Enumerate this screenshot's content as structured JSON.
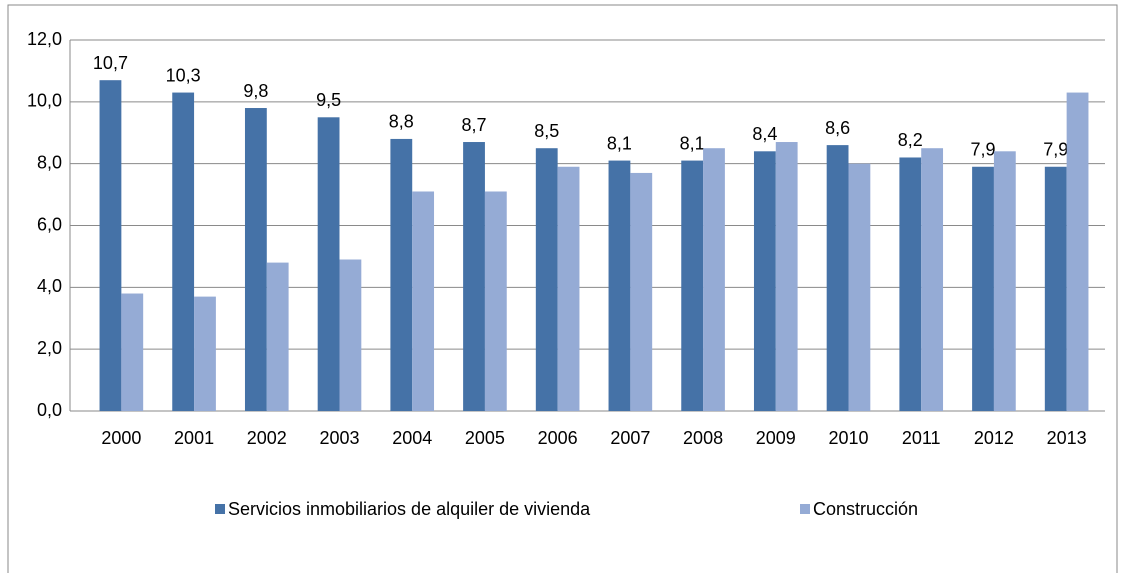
{
  "chart_data": {
    "type": "bar",
    "categories": [
      "2000",
      "2001",
      "2002",
      "2003",
      "2004",
      "2005",
      "2006",
      "2007",
      "2008",
      "2009",
      "2010",
      "2011",
      "2012",
      "2013"
    ],
    "series": [
      {
        "name": "Servicios inmobiliarios de alquiler de vivienda",
        "color": "#4572a7",
        "values": [
          10.7,
          10.3,
          9.8,
          9.5,
          8.8,
          8.7,
          8.5,
          8.1,
          8.1,
          8.4,
          8.6,
          8.2,
          7.9,
          7.9
        ],
        "value_labels": [
          "10,7",
          "10,3",
          "9,8",
          "9,5",
          "8,8",
          "8,7",
          "8,5",
          "8,1",
          "8,1",
          "8,4",
          "8,6",
          "8,2",
          "7,9",
          "7,9"
        ]
      },
      {
        "name": "Construcción",
        "color": "#95abd5",
        "values": [
          3.8,
          3.7,
          4.8,
          4.9,
          7.1,
          7.1,
          7.9,
          7.7,
          8.5,
          8.7,
          8.0,
          8.5,
          8.4,
          10.3
        ]
      }
    ],
    "ylim": [
      0,
      12
    ],
    "yticks": [
      {
        "value": 0,
        "label": "0,0"
      },
      {
        "value": 2,
        "label": "2,0"
      },
      {
        "value": 4,
        "label": "4,0"
      },
      {
        "value": 6,
        "label": "6,0"
      },
      {
        "value": 8,
        "label": "8,0"
      },
      {
        "value": 10,
        "label": "10,0"
      },
      {
        "value": 12,
        "label": "12,0"
      }
    ],
    "grid": true,
    "legend": "bottom"
  }
}
